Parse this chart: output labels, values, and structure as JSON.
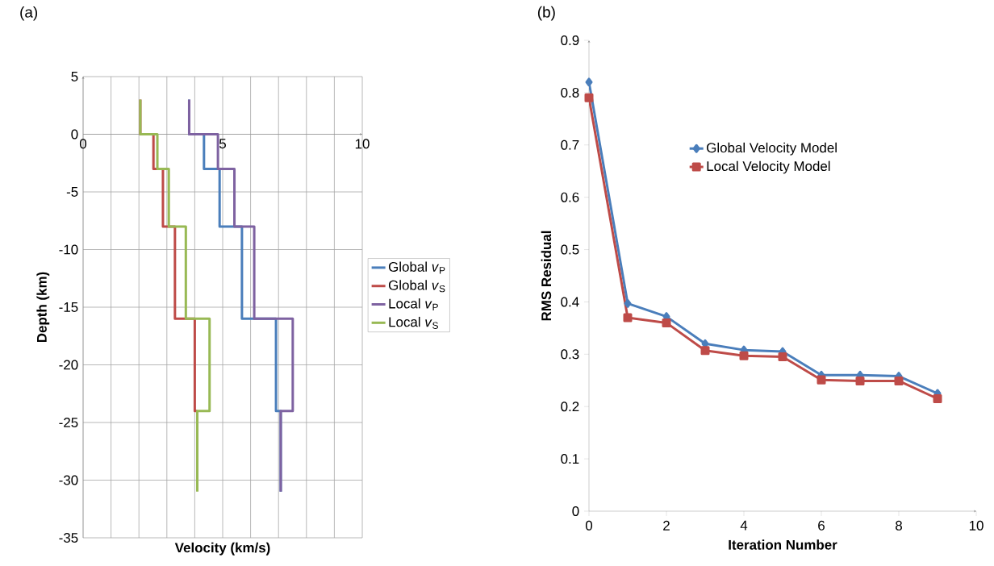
{
  "chart_data": [
    {
      "type": "line",
      "title": "(a)",
      "xlabel": "Velocity (km/s)",
      "ylabel": "Depth (km)",
      "xlim": [
        0,
        10
      ],
      "ylim": [
        -35,
        5
      ],
      "xticks": [
        0,
        {
          "value": 1,
          "label": null
        },
        {
          "value": 2,
          "label": null
        },
        {
          "value": 3,
          "label": null
        },
        {
          "value": 4,
          "label": null
        },
        5,
        {
          "value": 6,
          "label": null
        },
        {
          "value": 7,
          "label": null
        },
        {
          "value": 8,
          "label": null
        },
        {
          "value": 9,
          "label": null
        },
        10
      ],
      "yticks": [
        5,
        0,
        -5,
        -10,
        -15,
        -20,
        -25,
        -30,
        -35
      ],
      "grid": true,
      "legend": "right",
      "marker": "none",
      "series": [
        {
          "name": "Global *v*$_{P}$",
          "color": "#4a7ebb",
          "x": [
            3.8,
            3.8,
            4.33,
            4.33,
            4.89,
            4.89,
            5.69,
            5.69,
            6.91,
            6.91,
            7.08,
            7.08
          ],
          "values": [
            3,
            0,
            0,
            -3,
            -3,
            -8,
            -8,
            -16,
            -16,
            -24,
            -24,
            -31
          ]
        },
        {
          "name": "Global *v*$_{S}$",
          "color": "#be4b48",
          "x": [
            2.05,
            2.05,
            2.52,
            2.52,
            2.86,
            2.86,
            3.29,
            3.29,
            4.0,
            4.0,
            4.09
          ],
          "values": [
            3,
            0,
            0,
            -3,
            -3,
            -8,
            -8,
            -16,
            -16,
            -24,
            -24
          ]
        },
        {
          "name": "Local *v*$_{P}$",
          "color": "#7e62a1",
          "x": [
            3.8,
            3.8,
            4.83,
            4.83,
            5.42,
            5.42,
            6.13,
            6.13,
            7.51,
            7.51,
            7.08,
            7.08
          ],
          "values": [
            3,
            0,
            0,
            -3,
            -3,
            -8,
            -8,
            -16,
            -16,
            -24,
            -24,
            -31
          ]
        },
        {
          "name": "Local *v*$_{S}$",
          "color": "#98b954",
          "x": [
            2.05,
            2.05,
            2.66,
            2.66,
            3.07,
            3.07,
            3.68,
            3.68,
            4.53,
            4.53,
            4.09,
            4.09
          ],
          "values": [
            3,
            0,
            0,
            -3,
            -3,
            -8,
            -8,
            -16,
            -16,
            -24,
            -24,
            -31
          ]
        }
      ]
    },
    {
      "type": "line",
      "title": "(b)",
      "xlabel": "Iteration Number",
      "ylabel": "RMS Residual",
      "x": [
        0,
        1,
        2,
        3,
        4,
        5,
        6,
        7,
        8,
        9
      ],
      "xlim": [
        0,
        10
      ],
      "ylim": [
        0,
        0.9
      ],
      "xticks": [
        0,
        2,
        4,
        6,
        8,
        10
      ],
      "yticks": [
        0,
        0.1,
        0.2,
        0.3,
        0.4,
        0.5,
        0.6,
        0.7,
        0.8,
        0.9
      ],
      "grid": false,
      "legend": "top",
      "series": [
        {
          "name": "Global Velocity Model",
          "color": "#4a7ebb",
          "marker": "diamond",
          "values": [
            0.82,
            0.397,
            0.372,
            0.32,
            0.308,
            0.305,
            0.26,
            0.26,
            0.258,
            0.225
          ]
        },
        {
          "name": "Local Velocity Model",
          "color": "#be4b48",
          "marker": "square",
          "values": [
            0.79,
            0.37,
            0.36,
            0.307,
            0.297,
            0.295,
            0.251,
            0.249,
            0.249,
            0.215
          ]
        }
      ]
    }
  ]
}
